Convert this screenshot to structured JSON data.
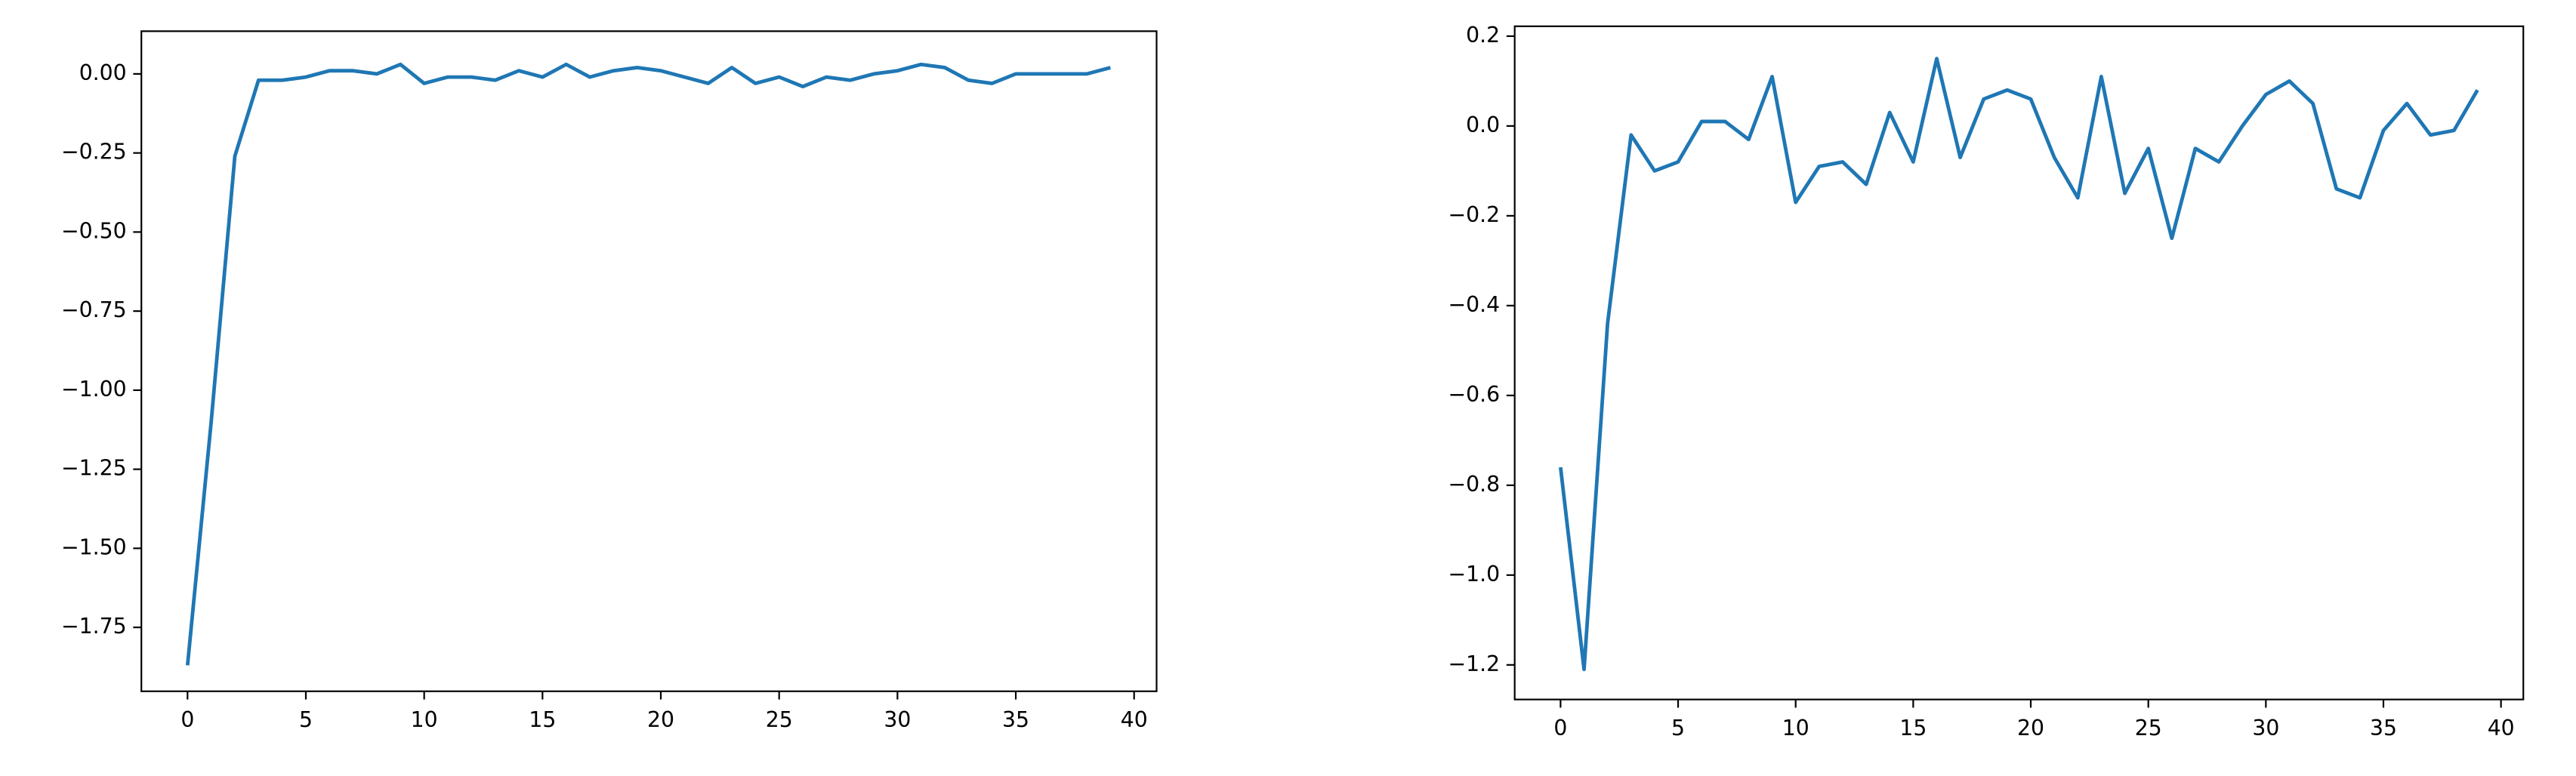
{
  "chart_data": [
    {
      "type": "line",
      "x": [
        0,
        1,
        2,
        3,
        4,
        5,
        6,
        7,
        8,
        9,
        10,
        11,
        12,
        13,
        14,
        15,
        16,
        17,
        18,
        19,
        20,
        21,
        22,
        23,
        24,
        25,
        26,
        27,
        28,
        29,
        30,
        31,
        32,
        33,
        34,
        35,
        36,
        37,
        38,
        39
      ],
      "series": [
        {
          "color": "#1f77b4",
          "values": [
            -1.87,
            -1.1,
            -0.26,
            -0.02,
            -0.02,
            -0.01,
            0.01,
            0.01,
            0.0,
            0.03,
            -0.03,
            -0.01,
            -0.01,
            -0.02,
            0.01,
            -0.01,
            0.03,
            -0.01,
            0.01,
            0.02,
            0.01,
            -0.01,
            -0.03,
            0.02,
            -0.03,
            -0.01,
            -0.04,
            -0.01,
            -0.02,
            0.0,
            0.01,
            0.03,
            0.02,
            -0.02,
            -0.03,
            0.0,
            0.0,
            0.0,
            0.0,
            0.02
          ]
        }
      ],
      "xlim": [
        -1.95,
        40.95
      ],
      "xticks": [
        0,
        5,
        10,
        15,
        20,
        25,
        30,
        35,
        40
      ],
      "ylim": [
        -1.952,
        0.135
      ],
      "yticks": [
        {
          "value": 0,
          "label": "0.00"
        },
        {
          "value": -0.25,
          "label": "−0.25"
        },
        {
          "value": -0.5,
          "label": "−0.50"
        },
        {
          "value": -0.75,
          "label": "−0.75"
        },
        {
          "value": -1.0,
          "label": "−1.00"
        },
        {
          "value": -1.25,
          "label": "−1.25"
        },
        {
          "value": -1.5,
          "label": "−1.50"
        },
        {
          "value": -1.75,
          "label": "−1.75"
        }
      ]
    },
    {
      "type": "line",
      "x": [
        0,
        1,
        2,
        3,
        4,
        5,
        6,
        7,
        8,
        9,
        10,
        11,
        12,
        13,
        14,
        15,
        16,
        17,
        18,
        19,
        20,
        21,
        22,
        23,
        24,
        25,
        26,
        27,
        28,
        29,
        30,
        31,
        32,
        33,
        34,
        35,
        36,
        37,
        38,
        39
      ],
      "series": [
        {
          "color": "#1f77b4",
          "values": [
            -0.76,
            -1.21,
            -0.44,
            -0.02,
            -0.1,
            -0.08,
            0.01,
            0.01,
            -0.03,
            0.11,
            -0.17,
            -0.09,
            -0.08,
            -0.13,
            0.03,
            -0.08,
            0.15,
            -0.07,
            0.06,
            0.08,
            0.06,
            -0.07,
            -0.16,
            0.11,
            -0.15,
            -0.05,
            -0.25,
            -0.05,
            -0.08,
            0.0,
            0.07,
            0.1,
            0.05,
            -0.14,
            -0.16,
            -0.01,
            0.05,
            -0.02,
            -0.01,
            0.08
          ]
        }
      ],
      "xlim": [
        -1.95,
        40.95
      ],
      "xticks": [
        0,
        5,
        10,
        15,
        20,
        25,
        30,
        35,
        40
      ],
      "ylim": [
        -1.277,
        0.222
      ],
      "yticks": [
        {
          "value": 0.2,
          "label": "0.2"
        },
        {
          "value": 0,
          "label": "0.0"
        },
        {
          "value": -0.2,
          "label": "−0.2"
        },
        {
          "value": -0.4,
          "label": "−0.4"
        },
        {
          "value": -0.6,
          "label": "−0.6"
        },
        {
          "value": -0.8,
          "label": "−0.8"
        },
        {
          "value": -1.0,
          "label": "−1.0"
        },
        {
          "value": -1.2,
          "label": "−1.2"
        }
      ]
    }
  ]
}
